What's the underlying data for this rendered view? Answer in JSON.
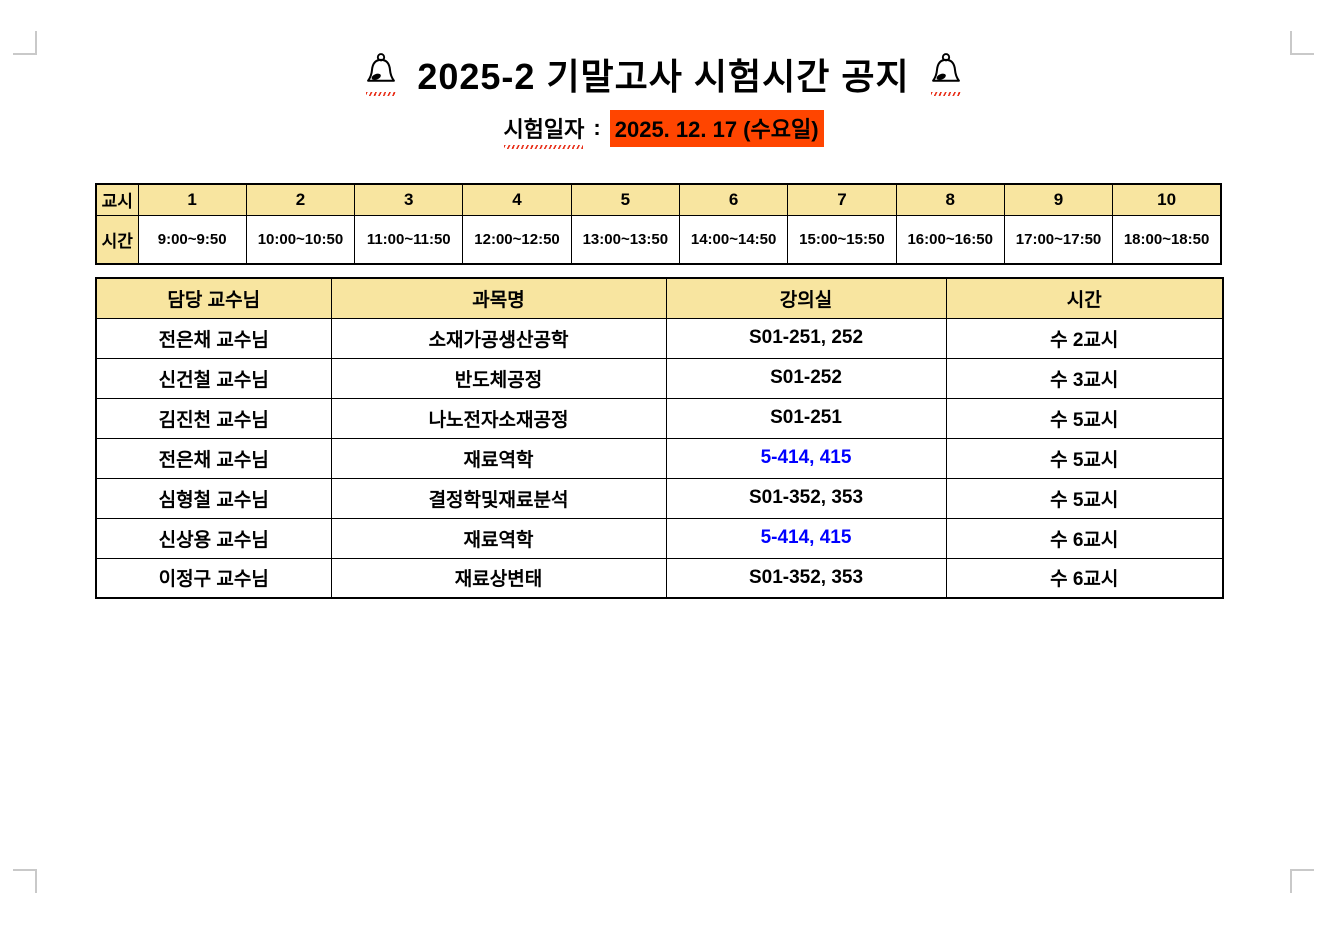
{
  "page": {
    "title": "2025-2 기말고사 시험시간 공지",
    "exam_date": {
      "label": "시험일자",
      "separator": ":",
      "value": "2025. 12. 17 (수요일)"
    }
  },
  "period_table": {
    "row1_label": "교시",
    "row2_label": "시간",
    "periods": [
      "1",
      "2",
      "3",
      "4",
      "5",
      "6",
      "7",
      "8",
      "9",
      "10"
    ],
    "times": [
      "9:00~9:50",
      "10:00~10:50",
      "11:00~11:50",
      "12:00~12:50",
      "13:00~13:50",
      "14:00~14:50",
      "15:00~15:50",
      "16:00~16:50",
      "17:00~17:50",
      "18:00~18:50"
    ]
  },
  "exam_table": {
    "headers": [
      "담당 교수님",
      "과목명",
      "강의실",
      "시간"
    ],
    "rows": [
      {
        "professor": "전은채 교수님",
        "subject": "소재가공생산공학",
        "room": "S01-251, 252",
        "room_highlighted": false,
        "time": "수 2교시"
      },
      {
        "professor": "신건철 교수님",
        "subject": "반도체공정",
        "room": "S01-252",
        "room_highlighted": false,
        "time": "수 3교시"
      },
      {
        "professor": "김진천 교수님",
        "subject": "나노전자소재공정",
        "room": "S01-251",
        "room_highlighted": false,
        "time": "수 5교시"
      },
      {
        "professor": "전은채 교수님",
        "subject": "재료역학",
        "room": "5-414, 415",
        "room_highlighted": true,
        "time": "수 5교시"
      },
      {
        "professor": "심형철 교수님",
        "subject": "결정학및재료분석",
        "room": "S01-352, 353",
        "room_highlighted": false,
        "time": "수 5교시"
      },
      {
        "professor": "신상용 교수님",
        "subject": "재료역학",
        "room": "5-414, 415",
        "room_highlighted": true,
        "time": "수 6교시"
      },
      {
        "professor": "이정구 교수님",
        "subject": "재료상변태",
        "room": "S01-352, 353",
        "room_highlighted": false,
        "time": "수 6교시"
      }
    ]
  },
  "colors": {
    "header_yellow": "#F8E5A0",
    "date_highlight_orange": "#FF4500",
    "room_blue": "#0000FF",
    "underline_red": "#E8321C",
    "corner_mark_gray": "#C9C9C9"
  }
}
